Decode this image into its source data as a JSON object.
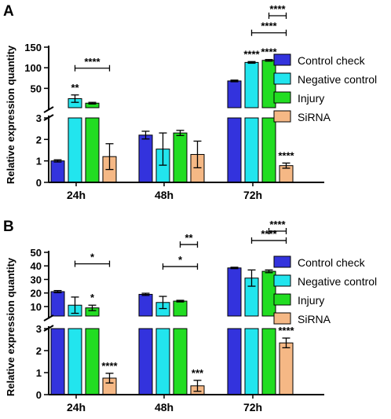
{
  "colors": {
    "Control check": "#3333dd",
    "Negative control": "#22e5ee",
    "Injury": "#22dd22",
    "SiRNA": "#f5b885",
    "axis": "#000000"
  },
  "chart_data": [
    {
      "type": "bar",
      "panel_label": "A",
      "ylabel": "Relative expression quantity",
      "categories": [
        "24h",
        "48h",
        "72h"
      ],
      "series": [
        {
          "name": "Control check",
          "values": [
            1,
            2.2,
            68
          ],
          "errors": [
            0.05,
            0.18,
            2
          ]
        },
        {
          "name": "Negative control",
          "values": [
            25,
            1.55,
            113
          ],
          "errors": [
            9,
            0.75,
            2
          ]
        },
        {
          "name": "Injury",
          "values": [
            14,
            2.3,
            118
          ],
          "errors": [
            2,
            0.12,
            2
          ]
        },
        {
          "name": "SiRNA",
          "values": [
            1.2,
            1.3,
            0.78
          ],
          "errors": [
            0.6,
            0.62,
            0.12
          ]
        }
      ],
      "y_axis_break": {
        "lower": {
          "ylim": [
            0,
            3
          ],
          "ticks": [
            0,
            1,
            2,
            3
          ]
        },
        "upper": {
          "ylim": [
            3,
            150
          ],
          "ticks": [
            50,
            100,
            150
          ]
        }
      },
      "annotations": [
        {
          "text": "**",
          "category": "24h",
          "series": "Negative control"
        },
        {
          "text": "****",
          "bracket": [
            "24h:Negative control",
            "24h:SiRNA"
          ]
        },
        {
          "text": "****",
          "category": "72h",
          "series": "Negative control"
        },
        {
          "text": "****",
          "category": "72h",
          "series": "Injury"
        },
        {
          "text": "****",
          "category": "72h",
          "series": "SiRNA"
        },
        {
          "text": "****",
          "bracket": [
            "72h:Negative control",
            "72h:SiRNA"
          ]
        },
        {
          "text": "****",
          "bracket": [
            "72h:Injury",
            "72h:SiRNA"
          ]
        }
      ],
      "legend": {
        "position": "right",
        "items": [
          "Control check",
          "Negative control",
          "Injury",
          "SiRNA"
        ]
      }
    },
    {
      "type": "bar",
      "panel_label": "B",
      "ylabel": "Relative expression quantity",
      "categories": [
        "24h",
        "48h",
        "72h"
      ],
      "series": [
        {
          "name": "Control check",
          "values": [
            21,
            19,
            38.5
          ],
          "errors": [
            0.8,
            0.8,
            0.5
          ]
        },
        {
          "name": "Negative control",
          "values": [
            11,
            13,
            31
          ],
          "errors": [
            6,
            4.5,
            6
          ]
        },
        {
          "name": "Injury",
          "values": [
            9,
            14,
            36
          ],
          "errors": [
            2,
            0.6,
            1
          ]
        },
        {
          "name": "SiRNA",
          "values": [
            0.75,
            0.4,
            2.35
          ],
          "errors": [
            0.22,
            0.25,
            0.22
          ]
        }
      ],
      "y_axis_break": {
        "lower": {
          "ylim": [
            0,
            3
          ],
          "ticks": [
            0,
            1,
            2,
            3
          ]
        },
        "upper": {
          "ylim": [
            3,
            50
          ],
          "ticks": [
            10,
            20,
            30,
            40,
            50
          ]
        }
      },
      "annotations": [
        {
          "text": "*",
          "category": "24h",
          "series": "Injury"
        },
        {
          "text": "*",
          "bracket": [
            "24h:Negative control",
            "24h:SiRNA"
          ]
        },
        {
          "text": "****",
          "category": "24h",
          "series": "SiRNA"
        },
        {
          "text": "*",
          "bracket": [
            "48h:Negative control",
            "48h:SiRNA"
          ]
        },
        {
          "text": "**",
          "bracket": [
            "48h:Injury",
            "48h:SiRNA"
          ]
        },
        {
          "text": "***",
          "category": "48h",
          "series": "SiRNA"
        },
        {
          "text": "****",
          "category": "72h",
          "series": "SiRNA"
        },
        {
          "text": "****",
          "bracket": [
            "72h:Negative control",
            "72h:SiRNA"
          ]
        },
        {
          "text": "****",
          "bracket": [
            "72h:Injury",
            "72h:SiRNA"
          ]
        }
      ],
      "legend": {
        "position": "right",
        "items": [
          "Control check",
          "Negative control",
          "Injury",
          "SiRNA"
        ]
      }
    }
  ]
}
